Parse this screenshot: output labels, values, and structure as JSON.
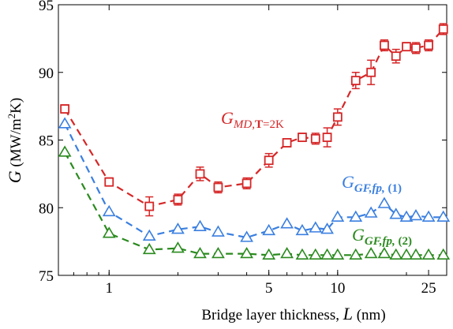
{
  "chart_data": {
    "type": "line",
    "xscale": "log",
    "xlim": [
      0.6,
      30
    ],
    "ylim": [
      75,
      95
    ],
    "xticks": [
      1,
      5,
      10,
      25
    ],
    "yticks": [
      75,
      80,
      85,
      90,
      95
    ],
    "xlabel": {
      "prefix": "Bridge layer thickness, ",
      "var": "L",
      "suffix": " (nm)"
    },
    "ylabel": {
      "var": "G",
      "prefix": " (MW/m",
      "sup": "2",
      "suffix": "K)"
    },
    "grid": false,
    "legend": "none",
    "series": [
      {
        "name": "G_{MD,T=2K}",
        "color": "#d62728",
        "marker": "square",
        "x": [
          0.64,
          1.0,
          1.5,
          2.0,
          2.5,
          3.0,
          4.0,
          5.0,
          6.0,
          7.0,
          8.0,
          9.0,
          10.0,
          12.0,
          14.0,
          16.0,
          18.0,
          20.0,
          22.0,
          25.0,
          29.0
        ],
        "y": [
          87.3,
          81.9,
          80.1,
          80.6,
          82.5,
          81.5,
          81.8,
          83.5,
          84.8,
          85.2,
          85.1,
          85.2,
          86.7,
          89.4,
          90.0,
          92.0,
          91.2,
          91.9,
          91.8,
          92.0,
          93.2
        ],
        "err": [
          0.3,
          0.3,
          0.7,
          0.4,
          0.5,
          0.4,
          0.4,
          0.5,
          0.3,
          0.3,
          0.4,
          0.7,
          0.6,
          0.6,
          0.9,
          0.4,
          0.5,
          0.3,
          0.4,
          0.4,
          0.4
        ]
      },
      {
        "name": "G_{GF,fp,(1)}",
        "color": "#3a7fe0",
        "marker": "triangle",
        "x": [
          0.64,
          1.0,
          1.5,
          2.0,
          2.5,
          3.0,
          4.0,
          5.0,
          6.0,
          7.0,
          8.0,
          9.0,
          10.0,
          12.0,
          14.0,
          16.0,
          18.0,
          20.0,
          22.0,
          25.0,
          29.0
        ],
        "y": [
          86.2,
          79.7,
          77.9,
          78.4,
          78.6,
          78.2,
          77.8,
          78.3,
          78.8,
          78.3,
          78.5,
          78.4,
          79.3,
          79.3,
          79.6,
          80.3,
          79.5,
          79.3,
          79.4,
          79.3,
          79.3
        ]
      },
      {
        "name": "G_{GF,fp,(2)}",
        "color": "#2a8a1e",
        "marker": "triangle",
        "x": [
          0.64,
          1.0,
          1.5,
          2.0,
          2.5,
          3.0,
          4.0,
          5.0,
          6.0,
          7.0,
          8.0,
          9.0,
          10.0,
          12.0,
          14.0,
          16.0,
          18.0,
          20.0,
          22.0,
          25.0,
          29.0
        ],
        "y": [
          84.1,
          78.1,
          76.9,
          77.0,
          76.6,
          76.6,
          76.6,
          76.5,
          76.6,
          76.5,
          76.5,
          76.5,
          76.5,
          76.5,
          76.6,
          76.6,
          76.5,
          76.5,
          76.5,
          76.5,
          76.5
        ]
      }
    ],
    "annotations": [
      {
        "main": "G",
        "sub_italic": "MD,",
        "sub_bold": "T",
        "tail": "=2K",
        "color": "#d62728",
        "style": "italic"
      },
      {
        "main": "G",
        "sub_italic": "GF,fp,",
        "tail": " (1)",
        "color": "#3a7fe0",
        "style": "bold-italic"
      },
      {
        "main": "G",
        "sub_italic": "GF,fp,",
        "tail": " (2)",
        "color": "#2a8a1e",
        "style": "bold-italic"
      }
    ]
  }
}
